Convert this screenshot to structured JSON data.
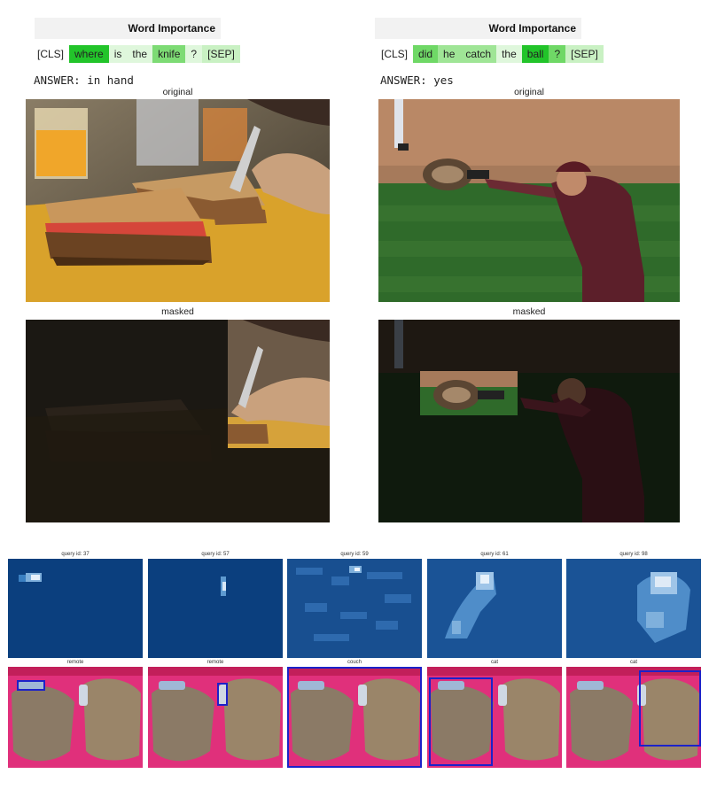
{
  "left_panel": {
    "title": "Word Importance",
    "tokens": [
      {
        "text": "[CLS]",
        "color": "#ffffff"
      },
      {
        "text": "where",
        "color": "#22c42a"
      },
      {
        "text": "is",
        "color": "#dff7dc"
      },
      {
        "text": "the",
        "color": "#dff7dc"
      },
      {
        "text": "knife",
        "color": "#7ddb74"
      },
      {
        "text": "?",
        "color": "#dff7dc"
      },
      {
        "text": "[SEP]",
        "color": "#c9f1c3"
      }
    ],
    "answer": "ANSWER: in hand",
    "original_label": "original",
    "masked_label": "masked"
  },
  "right_panel": {
    "title": "Word Importance",
    "tokens": [
      {
        "text": "[CLS]",
        "color": "#ffffff"
      },
      {
        "text": "did",
        "color": "#6fd866"
      },
      {
        "text": "he",
        "color": "#9fe596"
      },
      {
        "text": "catch",
        "color": "#9fe596"
      },
      {
        "text": "the",
        "color": "#dff7dc"
      },
      {
        "text": "ball",
        "color": "#22c42a"
      },
      {
        "text": "?",
        "color": "#6fd866"
      },
      {
        "text": "[SEP]",
        "color": "#c9f1c3"
      }
    ],
    "answer": "ANSWER: yes",
    "original_label": "original",
    "masked_label": "masked"
  },
  "queries": [
    {
      "label": "query id: 37",
      "class": "remote"
    },
    {
      "label": "query id: 57",
      "class": "remote"
    },
    {
      "label": "query id: 59",
      "class": "couch"
    },
    {
      "label": "query id: 61",
      "class": "cat"
    },
    {
      "label": "query id: 98",
      "class": "cat"
    }
  ],
  "colors": {
    "heat_bg": "#0b3f7e",
    "bbox": "#1c22c9",
    "couch": "#e0307b"
  }
}
